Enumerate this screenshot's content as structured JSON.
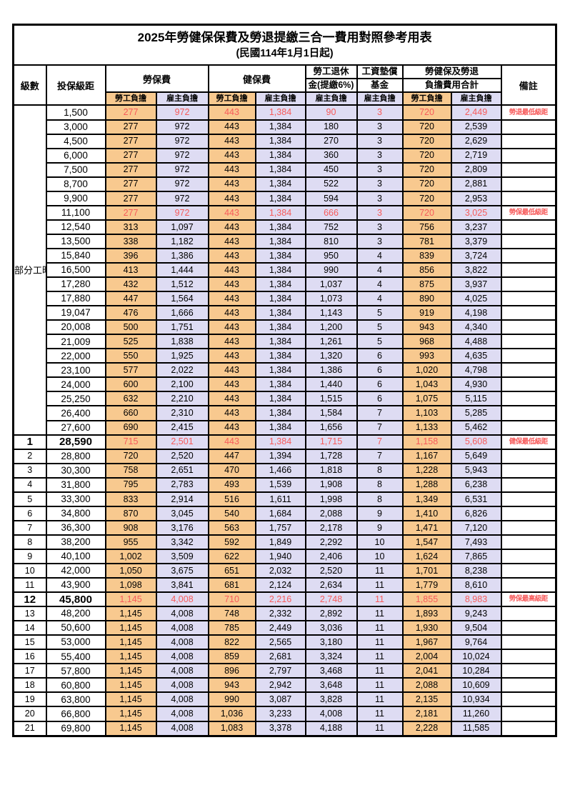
{
  "title": "2025年勞健保保費及勞退提繳三合一費用對照參考用表",
  "subtitle": "(民國114年1月1日起)",
  "colors": {
    "employee_fill": "#F8C98F",
    "employer_fill": "#DEDCF3",
    "highlight_red": "#F75B5B",
    "border": "#000000"
  },
  "header": {
    "level": "級數",
    "bracket": "投保級距",
    "labor_insurance": "勞保費",
    "health_insurance": "健保費",
    "pension_line1": "勞工退休",
    "pension_line2": "金(提繳6%)",
    "wage_fund_line1": "工資墊償",
    "wage_fund_line2": "基金",
    "total_line1": "勞健保及勞退",
    "total_line2": "負擔費用合計",
    "remark": "備註",
    "employee_share": "勞工負擔",
    "employer_share": "雇主負擔"
  },
  "part_time_label": "部分工時",
  "part_time_span": 23,
  "value_classes": [
    "emp",
    "er",
    "emp",
    "er",
    "er",
    "er",
    "emp",
    "er"
  ],
  "rows": [
    {
      "level": "",
      "bracket": "1,500",
      "values": [
        "277",
        "972",
        "443",
        "1,384",
        "90",
        "3",
        "720",
        "2,449"
      ],
      "remark": "勞退最低級距",
      "red": true,
      "em": false
    },
    {
      "level": "",
      "bracket": "3,000",
      "values": [
        "277",
        "972",
        "443",
        "1,384",
        "180",
        "3",
        "720",
        "2,539"
      ],
      "remark": "",
      "red": false,
      "em": false
    },
    {
      "level": "",
      "bracket": "4,500",
      "values": [
        "277",
        "972",
        "443",
        "1,384",
        "270",
        "3",
        "720",
        "2,629"
      ],
      "remark": "",
      "red": false,
      "em": false
    },
    {
      "level": "",
      "bracket": "6,000",
      "values": [
        "277",
        "972",
        "443",
        "1,384",
        "360",
        "3",
        "720",
        "2,719"
      ],
      "remark": "",
      "red": false,
      "em": false
    },
    {
      "level": "",
      "bracket": "7,500",
      "values": [
        "277",
        "972",
        "443",
        "1,384",
        "450",
        "3",
        "720",
        "2,809"
      ],
      "remark": "",
      "red": false,
      "em": false
    },
    {
      "level": "",
      "bracket": "8,700",
      "values": [
        "277",
        "972",
        "443",
        "1,384",
        "522",
        "3",
        "720",
        "2,881"
      ],
      "remark": "",
      "red": false,
      "em": false
    },
    {
      "level": "",
      "bracket": "9,900",
      "values": [
        "277",
        "972",
        "443",
        "1,384",
        "594",
        "3",
        "720",
        "2,953"
      ],
      "remark": "",
      "red": false,
      "em": false
    },
    {
      "level": "",
      "bracket": "11,100",
      "values": [
        "277",
        "972",
        "443",
        "1,384",
        "666",
        "3",
        "720",
        "3,025"
      ],
      "remark": "勞保最低級距",
      "red": true,
      "em": false
    },
    {
      "level": "",
      "bracket": "12,540",
      "values": [
        "313",
        "1,097",
        "443",
        "1,384",
        "752",
        "3",
        "756",
        "3,237"
      ],
      "remark": "",
      "red": false,
      "em": false
    },
    {
      "level": "",
      "bracket": "13,500",
      "values": [
        "338",
        "1,182",
        "443",
        "1,384",
        "810",
        "3",
        "781",
        "3,379"
      ],
      "remark": "",
      "red": false,
      "em": false
    },
    {
      "level": "",
      "bracket": "15,840",
      "values": [
        "396",
        "1,386",
        "443",
        "1,384",
        "950",
        "4",
        "839",
        "3,724"
      ],
      "remark": "",
      "red": false,
      "em": false
    },
    {
      "level": "",
      "bracket": "16,500",
      "values": [
        "413",
        "1,444",
        "443",
        "1,384",
        "990",
        "4",
        "856",
        "3,822"
      ],
      "remark": "",
      "red": false,
      "em": false
    },
    {
      "level": "",
      "bracket": "17,280",
      "values": [
        "432",
        "1,512",
        "443",
        "1,384",
        "1,037",
        "4",
        "875",
        "3,937"
      ],
      "remark": "",
      "red": false,
      "em": false
    },
    {
      "level": "",
      "bracket": "17,880",
      "values": [
        "447",
        "1,564",
        "443",
        "1,384",
        "1,073",
        "4",
        "890",
        "4,025"
      ],
      "remark": "",
      "red": false,
      "em": false
    },
    {
      "level": "",
      "bracket": "19,047",
      "values": [
        "476",
        "1,666",
        "443",
        "1,384",
        "1,143",
        "5",
        "919",
        "4,198"
      ],
      "remark": "",
      "red": false,
      "em": false
    },
    {
      "level": "",
      "bracket": "20,008",
      "values": [
        "500",
        "1,751",
        "443",
        "1,384",
        "1,200",
        "5",
        "943",
        "4,340"
      ],
      "remark": "",
      "red": false,
      "em": false
    },
    {
      "level": "",
      "bracket": "21,009",
      "values": [
        "525",
        "1,838",
        "443",
        "1,384",
        "1,261",
        "5",
        "968",
        "4,488"
      ],
      "remark": "",
      "red": false,
      "em": false
    },
    {
      "level": "",
      "bracket": "22,000",
      "values": [
        "550",
        "1,925",
        "443",
        "1,384",
        "1,320",
        "6",
        "993",
        "4,635"
      ],
      "remark": "",
      "red": false,
      "em": false
    },
    {
      "level": "",
      "bracket": "23,100",
      "values": [
        "577",
        "2,022",
        "443",
        "1,384",
        "1,386",
        "6",
        "1,020",
        "4,798"
      ],
      "remark": "",
      "red": false,
      "em": false
    },
    {
      "level": "",
      "bracket": "24,000",
      "values": [
        "600",
        "2,100",
        "443",
        "1,384",
        "1,440",
        "6",
        "1,043",
        "4,930"
      ],
      "remark": "",
      "red": false,
      "em": false
    },
    {
      "level": "",
      "bracket": "25,250",
      "values": [
        "632",
        "2,210",
        "443",
        "1,384",
        "1,515",
        "6",
        "1,075",
        "5,115"
      ],
      "remark": "",
      "red": false,
      "em": false
    },
    {
      "level": "",
      "bracket": "26,400",
      "values": [
        "660",
        "2,310",
        "443",
        "1,384",
        "1,584",
        "7",
        "1,103",
        "5,285"
      ],
      "remark": "",
      "red": false,
      "em": false
    },
    {
      "level": "",
      "bracket": "27,600",
      "values": [
        "690",
        "2,415",
        "443",
        "1,384",
        "1,656",
        "7",
        "1,133",
        "5,462"
      ],
      "remark": "",
      "red": false,
      "em": false
    },
    {
      "level": "1",
      "bracket": "28,590",
      "values": [
        "715",
        "2,501",
        "443",
        "1,384",
        "1,715",
        "7",
        "1,158",
        "5,608"
      ],
      "remark": "健保最低級距",
      "red": true,
      "em": true
    },
    {
      "level": "2",
      "bracket": "28,800",
      "values": [
        "720",
        "2,520",
        "447",
        "1,394",
        "1,728",
        "7",
        "1,167",
        "5,649"
      ],
      "remark": "",
      "red": false,
      "em": false
    },
    {
      "level": "3",
      "bracket": "30,300",
      "values": [
        "758",
        "2,651",
        "470",
        "1,466",
        "1,818",
        "8",
        "1,228",
        "5,943"
      ],
      "remark": "",
      "red": false,
      "em": false
    },
    {
      "level": "4",
      "bracket": "31,800",
      "values": [
        "795",
        "2,783",
        "493",
        "1,539",
        "1,908",
        "8",
        "1,288",
        "6,238"
      ],
      "remark": "",
      "red": false,
      "em": false
    },
    {
      "level": "5",
      "bracket": "33,300",
      "values": [
        "833",
        "2,914",
        "516",
        "1,611",
        "1,998",
        "8",
        "1,349",
        "6,531"
      ],
      "remark": "",
      "red": false,
      "em": false
    },
    {
      "level": "6",
      "bracket": "34,800",
      "values": [
        "870",
        "3,045",
        "540",
        "1,684",
        "2,088",
        "9",
        "1,410",
        "6,826"
      ],
      "remark": "",
      "red": false,
      "em": false
    },
    {
      "level": "7",
      "bracket": "36,300",
      "values": [
        "908",
        "3,176",
        "563",
        "1,757",
        "2,178",
        "9",
        "1,471",
        "7,120"
      ],
      "remark": "",
      "red": false,
      "em": false
    },
    {
      "level": "8",
      "bracket": "38,200",
      "values": [
        "955",
        "3,342",
        "592",
        "1,849",
        "2,292",
        "10",
        "1,547",
        "7,493"
      ],
      "remark": "",
      "red": false,
      "em": false
    },
    {
      "level": "9",
      "bracket": "40,100",
      "values": [
        "1,002",
        "3,509",
        "622",
        "1,940",
        "2,406",
        "10",
        "1,624",
        "7,865"
      ],
      "remark": "",
      "red": false,
      "em": false
    },
    {
      "level": "10",
      "bracket": "42,000",
      "values": [
        "1,050",
        "3,675",
        "651",
        "2,032",
        "2,520",
        "11",
        "1,701",
        "8,238"
      ],
      "remark": "",
      "red": false,
      "em": false
    },
    {
      "level": "11",
      "bracket": "43,900",
      "values": [
        "1,098",
        "3,841",
        "681",
        "2,124",
        "2,634",
        "11",
        "1,779",
        "8,610"
      ],
      "remark": "",
      "red": false,
      "em": false
    },
    {
      "level": "12",
      "bracket": "45,800",
      "values": [
        "1,145",
        "4,008",
        "710",
        "2,216",
        "2,748",
        "11",
        "1,855",
        "8,983"
      ],
      "remark": "勞保最高級距",
      "red": true,
      "em": true
    },
    {
      "level": "13",
      "bracket": "48,200",
      "values": [
        "1,145",
        "4,008",
        "748",
        "2,332",
        "2,892",
        "11",
        "1,893",
        "9,243"
      ],
      "remark": "",
      "red": false,
      "em": false
    },
    {
      "level": "14",
      "bracket": "50,600",
      "values": [
        "1,145",
        "4,008",
        "785",
        "2,449",
        "3,036",
        "11",
        "1,930",
        "9,504"
      ],
      "remark": "",
      "red": false,
      "em": false
    },
    {
      "level": "15",
      "bracket": "53,000",
      "values": [
        "1,145",
        "4,008",
        "822",
        "2,565",
        "3,180",
        "11",
        "1,967",
        "9,764"
      ],
      "remark": "",
      "red": false,
      "em": false
    },
    {
      "level": "16",
      "bracket": "55,400",
      "values": [
        "1,145",
        "4,008",
        "859",
        "2,681",
        "3,324",
        "11",
        "2,004",
        "10,024"
      ],
      "remark": "",
      "red": false,
      "em": false
    },
    {
      "level": "17",
      "bracket": "57,800",
      "values": [
        "1,145",
        "4,008",
        "896",
        "2,797",
        "3,468",
        "11",
        "2,041",
        "10,284"
      ],
      "remark": "",
      "red": false,
      "em": false
    },
    {
      "level": "18",
      "bracket": "60,800",
      "values": [
        "1,145",
        "4,008",
        "943",
        "2,942",
        "3,648",
        "11",
        "2,088",
        "10,609"
      ],
      "remark": "",
      "red": false,
      "em": false
    },
    {
      "level": "19",
      "bracket": "63,800",
      "values": [
        "1,145",
        "4,008",
        "990",
        "3,087",
        "3,828",
        "11",
        "2,135",
        "10,934"
      ],
      "remark": "",
      "red": false,
      "em": false
    },
    {
      "level": "20",
      "bracket": "66,800",
      "values": [
        "1,145",
        "4,008",
        "1,036",
        "3,233",
        "4,008",
        "11",
        "2,181",
        "11,260"
      ],
      "remark": "",
      "red": false,
      "em": false
    },
    {
      "level": "21",
      "bracket": "69,800",
      "values": [
        "1,145",
        "4,008",
        "1,083",
        "3,378",
        "4,188",
        "11",
        "2,228",
        "11,585"
      ],
      "remark": "",
      "red": false,
      "em": false
    }
  ]
}
